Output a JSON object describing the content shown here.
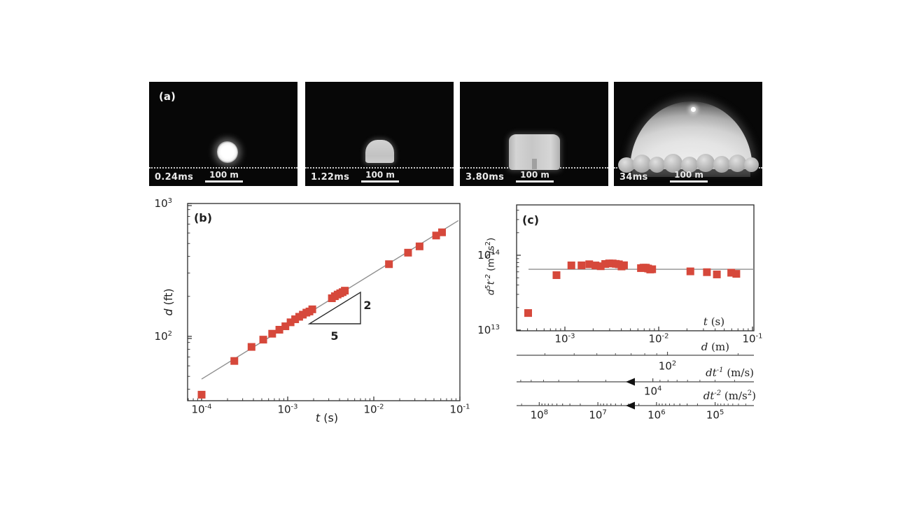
{
  "panel_a": {
    "label": "(a)",
    "frames": [
      {
        "time": "0.24ms",
        "scale": "100 m"
      },
      {
        "time": "1.22ms",
        "scale": "100 m"
      },
      {
        "time": "3.80ms",
        "scale": "100 m"
      },
      {
        "time": "34ms",
        "scale": "100 m"
      }
    ]
  },
  "chart_data": [
    {
      "id": "panel-b",
      "type": "scatter",
      "panel_label": "(b)",
      "xlabel_var": "t",
      "xlabel_unit": " (s)",
      "ylabel_var": "d",
      "ylabel_unit": " (ft)",
      "xscale": "log",
      "yscale": "log",
      "xlim": [
        6.9e-05,
        0.1
      ],
      "ylim": [
        33,
        1000
      ],
      "x_ticks": [
        {
          "label": "10^{-4}",
          "value": 0.0001
        },
        {
          "label": "10^{-3}",
          "value": 0.001
        },
        {
          "label": "10^{-2}",
          "value": 0.01
        },
        {
          "label": "10^{-1}",
          "value": 0.1
        }
      ],
      "y_ticks": [
        {
          "label": "10^{2}",
          "value": 100
        },
        {
          "label": "10^{3}",
          "value": 1000
        }
      ],
      "x": [
        0.0001,
        0.00024,
        0.00038,
        0.00052,
        0.00066,
        0.0008,
        0.00094,
        0.00108,
        0.00122,
        0.00136,
        0.0015,
        0.00165,
        0.00179,
        0.00193,
        0.00326,
        0.00353,
        0.0038,
        0.00407,
        0.00434,
        0.00461,
        0.015,
        0.025,
        0.034,
        0.053,
        0.062
      ],
      "y": [
        36.4,
        65.3,
        83.3,
        94.5,
        104.7,
        112.2,
        119.1,
        127.6,
        134.5,
        140.4,
        145.7,
        150.9,
        153.9,
        159.8,
        193.6,
        200.5,
        206.4,
        211.0,
        215.2,
        220.8,
        349.4,
        426.5,
        475.7,
        574.1,
        606.9
      ],
      "fit_line": {
        "slope_exponent": 0.4,
        "coeff_ft": 1899,
        "t_start": 0.0001,
        "t_end": 0.096
      },
      "slope_triangle": {
        "rise_label": "2",
        "run_label": "5"
      }
    },
    {
      "id": "panel-c",
      "type": "scatter",
      "panel_label": "(c)",
      "inner_xlabel_var": "t",
      "inner_xlabel_unit": " (s)",
      "ylabel_var": "d^{5}t^{-2}",
      "ylabel_unit": " (m^{5}/s^{2})",
      "xscale": "log",
      "yscale": "log",
      "xlim": [
        0.00031,
        0.1
      ],
      "ylim": [
        10000000000000.0,
        470000000000000.0
      ],
      "x_ticks": [
        {
          "label": "10^{-3}",
          "value": 0.001
        },
        {
          "label": "10^{-2}",
          "value": 0.01
        },
        {
          "label": "10^{-1}",
          "value": 0.1
        }
      ],
      "y_ticks": [
        {
          "label": "10^{13}",
          "value": 10000000000000.0
        },
        {
          "label": "10^{14}",
          "value": 100000000000000.0
        }
      ],
      "x": [
        0.0001,
        0.00024,
        0.00038,
        0.00052,
        0.00066,
        0.0008,
        0.00094,
        0.00108,
        0.00122,
        0.00136,
        0.0015,
        0.00165,
        0.00179,
        0.00193,
        0.00326,
        0.00353,
        0.0038,
        0.00407,
        0.00434,
        0.00461,
        0.015,
        0.025,
        0.034,
        0.053,
        0.062
      ],
      "y": [
        16900000000000.0,
        54200000000000.0,
        73200000000000.0,
        73300000000000.0,
        75800000000000.0,
        73100000000000.0,
        71300000000000.0,
        76400000000000.0,
        77800000000000.0,
        77700000000000.0,
        76700000000000.0,
        75700000000000.0,
        70800000000000.0,
        73500000000000.0,
        67300000000000.0,
        68300000000000.0,
        68200000000000.0,
        66400000000000.0,
        64500000000000.0,
        65000000000000.0,
        60900000000000.0,
        59400000000000.0,
        55400000000000.0,
        58400000000000.0,
        56400000000000.0
      ],
      "hline": {
        "value": 65000000000000.0
      },
      "extra_axes": [
        {
          "label_var": "d",
          "label_unit": " (m)",
          "arrow": false,
          "ticks": [
            {
              "label": "10^{2}",
              "value": 100
            }
          ],
          "minor_tick_values": [
            30,
            40,
            50,
            60,
            70,
            80,
            90,
            200
          ]
        },
        {
          "label_var": "dt^{-1}",
          "label_unit": " (m/s)",
          "arrow": true,
          "ticks": [
            {
              "label": "10^{4}",
              "value": 10000.0
            }
          ],
          "minor_tick_values": [
            70000.0,
            60000.0,
            50000.0,
            40000.0,
            30000.0,
            20000.0,
            9000.0,
            8000.0,
            7000.0,
            6000.0,
            5000.0,
            4000.0,
            3000.0
          ]
        },
        {
          "label_var": "dt^{-2}",
          "label_unit": " (m/s^{2})",
          "arrow": true,
          "ticks": [
            {
              "label": "10^{8}",
              "value": 100000000.0
            },
            {
              "label": "10^{7}",
              "value": 10000000.0
            },
            {
              "label": "10^{6}",
              "value": 1000000.0
            },
            {
              "label": "10^{5}",
              "value": 100000.0
            }
          ]
        }
      ]
    }
  ],
  "colors": {
    "marker": "#d6483b",
    "fit_line": "#8f8f8f",
    "axis": "#2a2a2a",
    "extra_axis": "#4a4a4a",
    "photo_text": "#e9e9e9"
  }
}
